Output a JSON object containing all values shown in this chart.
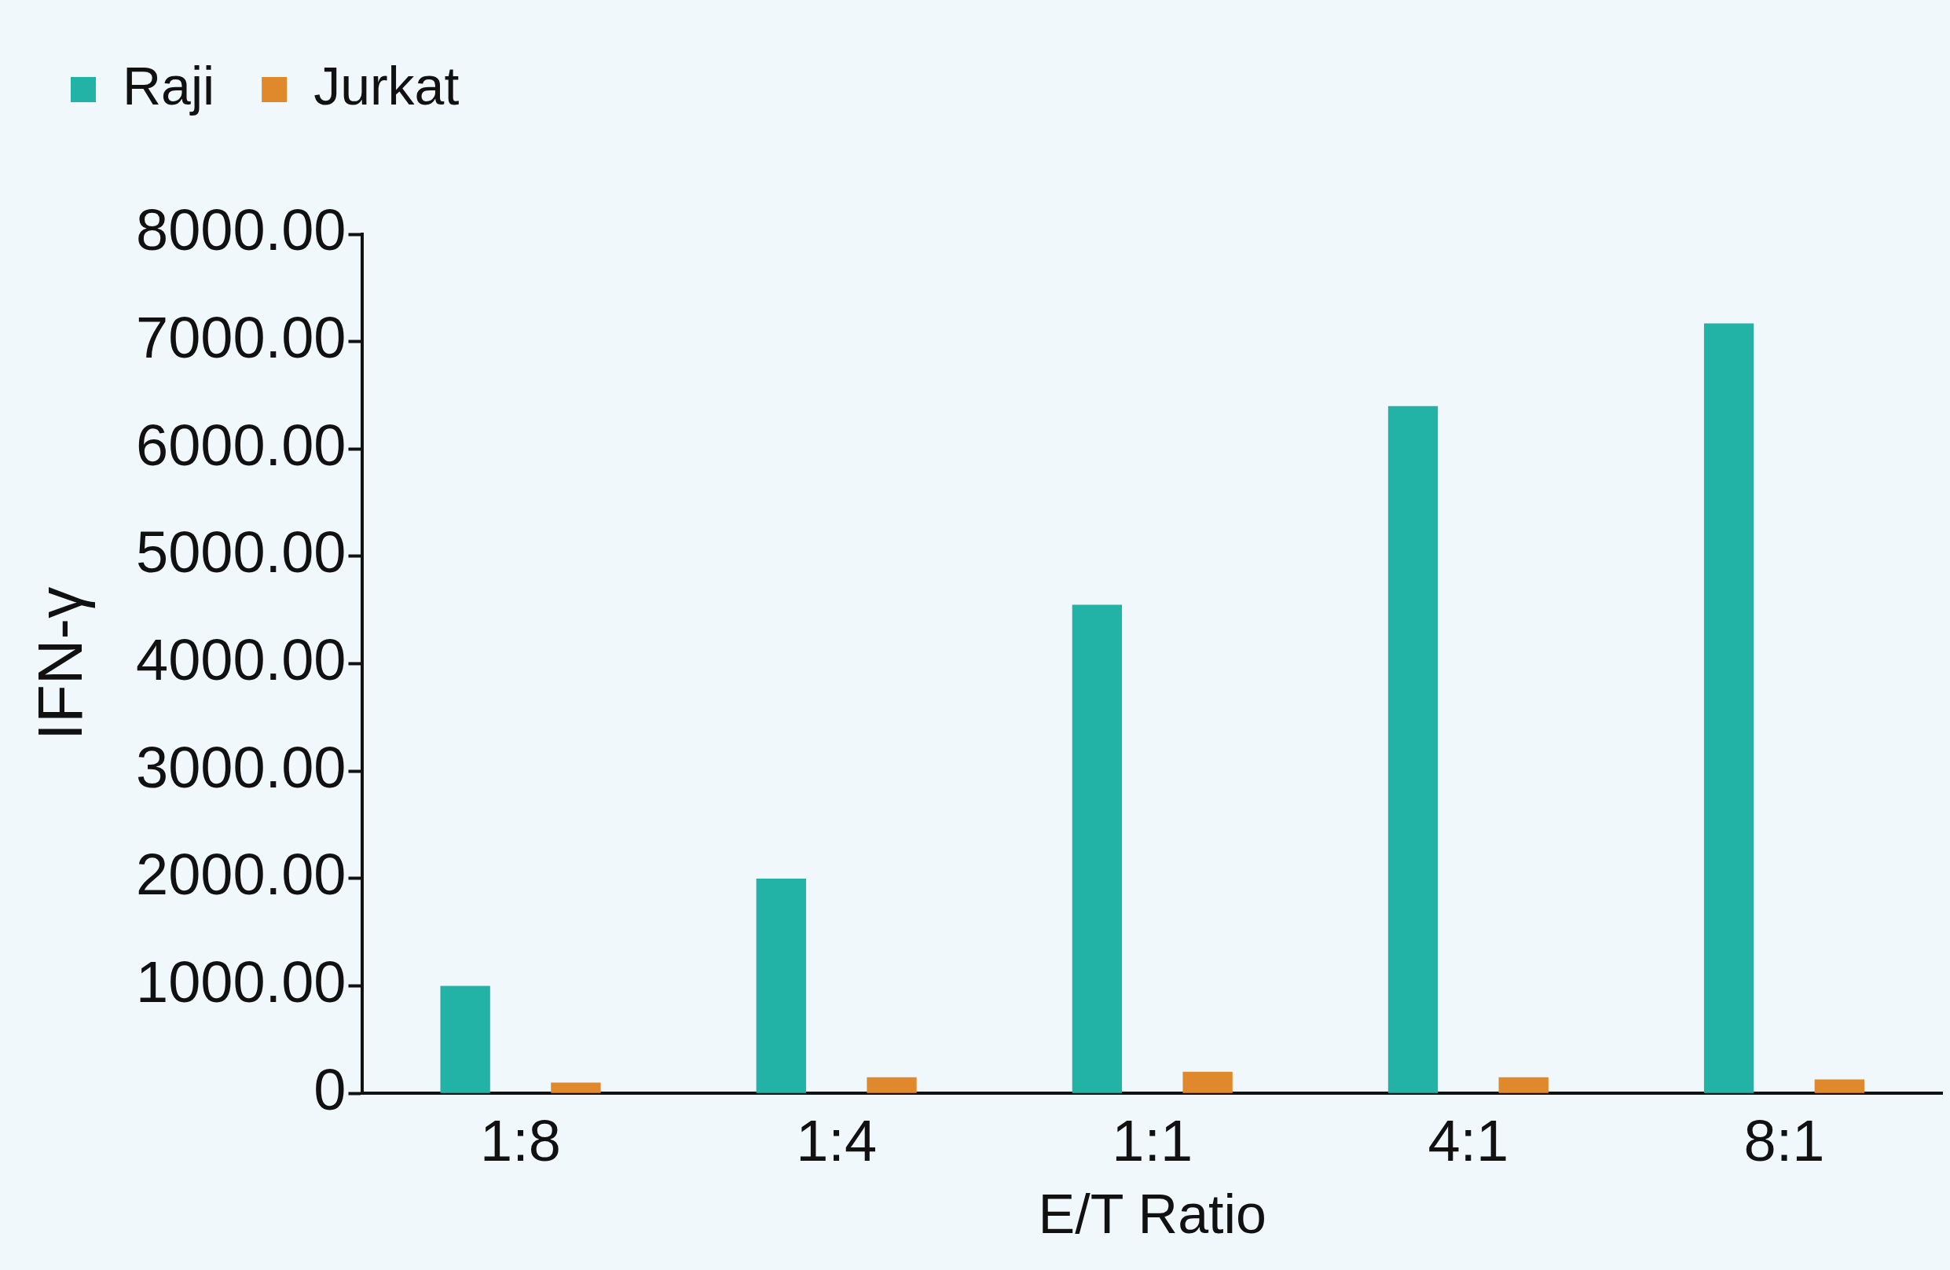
{
  "chart_data": {
    "type": "bar",
    "xlabel": "E/T Ratio",
    "ylabel": "IFN-γ",
    "categories": [
      "1:8",
      "1:4",
      "1:1",
      "4:1",
      "8:1"
    ],
    "series": [
      {
        "name": "Raji",
        "color": "#22b2a6",
        "values": [
          1000,
          2000,
          4550,
          6400,
          7170
        ]
      },
      {
        "name": "Jurkat",
        "color": "#e0892c",
        "values": [
          100,
          150,
          200,
          150,
          130
        ]
      }
    ],
    "ylim": [
      0,
      8000
    ],
    "yticks": [
      {
        "value": 0,
        "label": "0"
      },
      {
        "value": 1000,
        "label": "1000.00"
      },
      {
        "value": 2000,
        "label": "2000.00"
      },
      {
        "value": 3000,
        "label": "3000.00"
      },
      {
        "value": 4000,
        "label": "4000.00"
      },
      {
        "value": 5000,
        "label": "5000.00"
      },
      {
        "value": 6000,
        "label": "6000.00"
      },
      {
        "value": 7000,
        "label": "7000.00"
      },
      {
        "value": 8000,
        "label": "8000.00"
      }
    ],
    "grid": false,
    "legend": "top left"
  }
}
